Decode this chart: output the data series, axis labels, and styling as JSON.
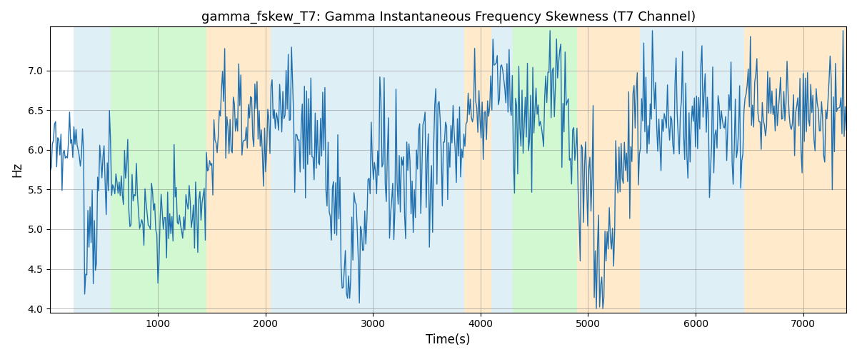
{
  "title": "gamma_fskew_T7: Gamma Instantaneous Frequency Skewness (T7 Channel)",
  "xlabel": "Time(s)",
  "ylabel": "Hz",
  "xlim": [
    0,
    7400
  ],
  "ylim": [
    3.95,
    7.55
  ],
  "yticks": [
    4.0,
    4.5,
    5.0,
    5.5,
    6.0,
    6.5,
    7.0
  ],
  "xticks": [
    1000,
    2000,
    3000,
    4000,
    5000,
    6000,
    7000
  ],
  "line_color": "#2070b0",
  "line_width": 1.0,
  "background_color": "#ffffff",
  "regions": [
    {
      "xmin": 220,
      "xmax": 560,
      "color": "#add8e6",
      "alpha": 0.4
    },
    {
      "xmin": 560,
      "xmax": 1450,
      "color": "#90ee90",
      "alpha": 0.4
    },
    {
      "xmin": 1450,
      "xmax": 2050,
      "color": "#ffd699",
      "alpha": 0.5
    },
    {
      "xmin": 2050,
      "xmax": 3850,
      "color": "#add8e6",
      "alpha": 0.4
    },
    {
      "xmin": 3850,
      "xmax": 4100,
      "color": "#ffd699",
      "alpha": 0.5
    },
    {
      "xmin": 4100,
      "xmax": 4300,
      "color": "#add8e6",
      "alpha": 0.4
    },
    {
      "xmin": 4300,
      "xmax": 4900,
      "color": "#90ee90",
      "alpha": 0.4
    },
    {
      "xmin": 4900,
      "xmax": 5480,
      "color": "#ffd699",
      "alpha": 0.5
    },
    {
      "xmin": 5480,
      "xmax": 6450,
      "color": "#add8e6",
      "alpha": 0.4
    },
    {
      "xmin": 6450,
      "xmax": 7400,
      "color": "#ffd699",
      "alpha": 0.5
    }
  ],
  "seed": 12345,
  "n_points": 740
}
